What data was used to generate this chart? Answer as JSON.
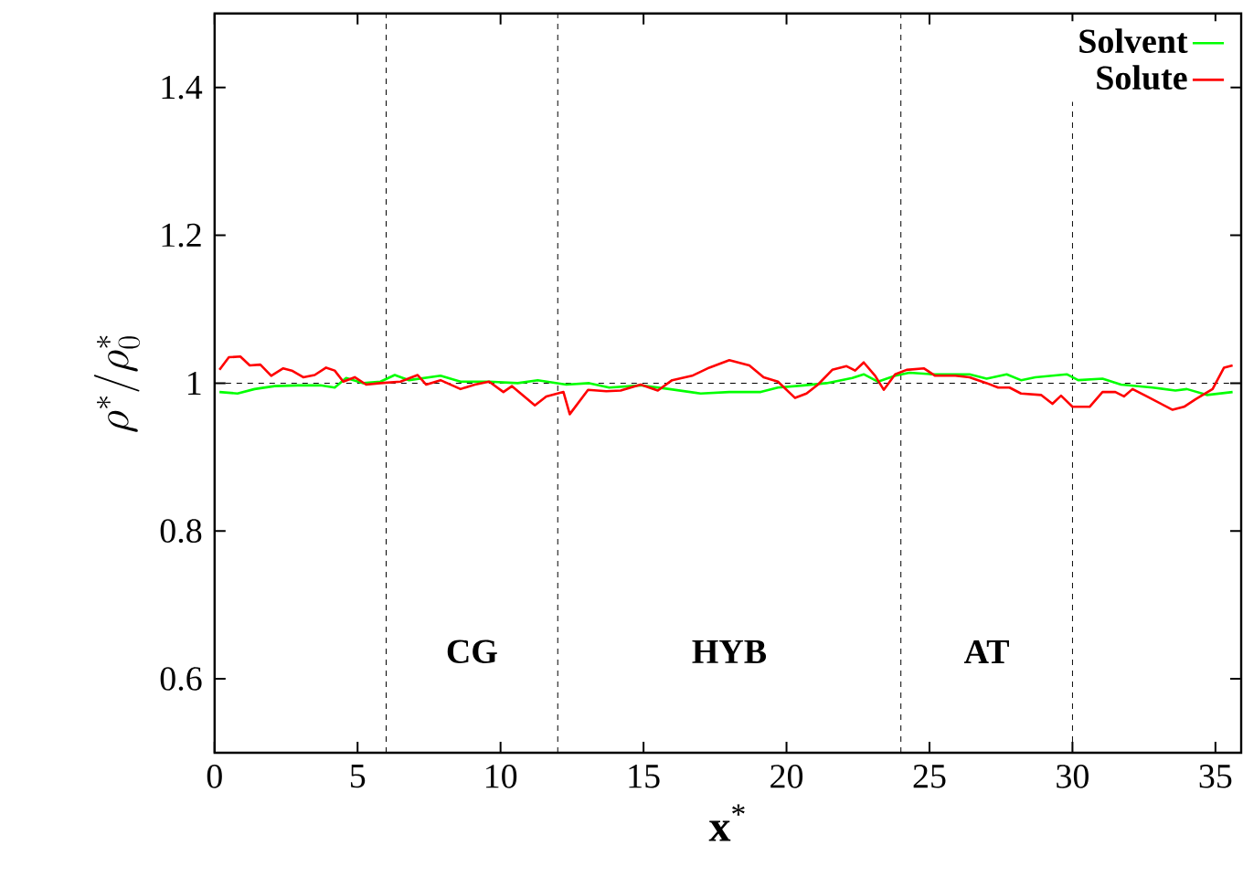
{
  "chart_data": {
    "type": "line",
    "xlabel": "**x**$^{*}$",
    "ylabel": "\\rho^*/\\rho^*_0",
    "xlim": [
      0,
      35.9
    ],
    "ylim": [
      0.5,
      1.5
    ],
    "xticks": [
      0,
      5,
      10,
      15,
      20,
      25,
      30,
      35
    ],
    "yticks": [
      0.6,
      0.8,
      1,
      1.2,
      1.4
    ],
    "legend": "top right",
    "grid": false,
    "line_style": "solid",
    "marker": "none",
    "series": [
      {
        "name": "Solvent",
        "color": "#00ff00",
        "x": [
          0.17,
          0.8,
          1.4,
          2.1,
          2.9,
          3.7,
          4.2,
          4.6,
          5.2,
          5.8,
          6.3,
          6.8,
          7.9,
          8.6,
          9.6,
          10.6,
          11.3,
          12.3,
          13.1,
          13.8,
          14.9,
          15.9,
          17.0,
          18.0,
          19.1,
          19.7,
          20.6,
          21.4,
          22.3,
          22.7,
          23.2,
          23.8,
          24.3,
          25.1,
          26.4,
          27.0,
          27.7,
          28.2,
          28.7,
          29.8,
          30.2,
          31.05,
          31.7,
          32.8,
          33.6,
          34.0,
          34.7,
          35.6
        ],
        "values": [
          0.988,
          0.986,
          0.992,
          0.996,
          0.997,
          0.997,
          0.994,
          1.007,
          1.0,
          1.002,
          1.011,
          1.004,
          1.01,
          1.002,
          1.002,
          1.0,
          1.004,
          0.998,
          1.0,
          0.994,
          0.997,
          0.992,
          0.986,
          0.988,
          0.988,
          0.994,
          0.997,
          1.0,
          1.007,
          1.012,
          1.002,
          1.01,
          1.014,
          1.012,
          1.012,
          1.006,
          1.012,
          1.004,
          1.008,
          1.012,
          1.004,
          1.006,
          0.998,
          0.994,
          0.99,
          0.992,
          0.984,
          0.988
        ]
      },
      {
        "name": "Solute",
        "color": "#ff0000",
        "x": [
          0.17,
          0.5,
          0.9,
          1.23,
          1.6,
          1.98,
          2.4,
          2.7,
          3.1,
          3.5,
          3.9,
          4.2,
          4.5,
          4.9,
          5.3,
          5.8,
          6.5,
          7.1,
          7.4,
          7.9,
          8.6,
          9.1,
          9.6,
          10.1,
          10.4,
          11.2,
          11.6,
          12.2,
          12.42,
          13.06,
          13.7,
          14.2,
          14.9,
          15.5,
          16.0,
          16.7,
          17.3,
          18.0,
          18.7,
          19.2,
          19.7,
          20.3,
          20.7,
          21.1,
          21.6,
          22.1,
          22.4,
          22.7,
          23.1,
          23.4,
          23.8,
          24.2,
          24.8,
          25.2,
          25.9,
          26.4,
          27.0,
          27.4,
          27.8,
          28.2,
          28.9,
          29.3,
          29.6,
          30.0,
          30.6,
          31.05,
          31.5,
          31.8,
          32.1,
          32.6,
          33.2,
          33.5,
          33.9,
          34.3,
          34.9,
          35.3,
          35.6
        ],
        "values": [
          1.018,
          1.035,
          1.036,
          1.024,
          1.025,
          1.01,
          1.02,
          1.017,
          1.008,
          1.011,
          1.021,
          1.017,
          1.002,
          1.008,
          0.998,
          1.0,
          1.002,
          1.011,
          0.998,
          1.004,
          0.992,
          0.998,
          1.002,
          0.988,
          0.996,
          0.97,
          0.982,
          0.988,
          0.958,
          0.991,
          0.989,
          0.99,
          0.998,
          0.99,
          1.004,
          1.01,
          1.021,
          1.031,
          1.024,
          1.008,
          1.002,
          0.98,
          0.986,
          0.998,
          1.018,
          1.023,
          1.017,
          1.028,
          1.01,
          0.991,
          1.012,
          1.018,
          1.02,
          1.01,
          1.01,
          1.008,
          1.0,
          0.994,
          0.994,
          0.986,
          0.984,
          0.972,
          0.983,
          0.968,
          0.968,
          0.988,
          0.988,
          0.982,
          0.992,
          0.982,
          0.97,
          0.964,
          0.968,
          0.978,
          0.992,
          1.021,
          1.024
        ]
      }
    ],
    "ref_lines": [
      {
        "axis": "y",
        "value": 1,
        "color": "#000000",
        "line_style": "dashed"
      },
      {
        "axis": "x",
        "value": 6,
        "color": "#000000",
        "line_style": "dashed"
      },
      {
        "axis": "x",
        "value": 12,
        "color": "#000000",
        "line_style": "dashed"
      },
      {
        "axis": "x",
        "value": 24,
        "color": "#000000",
        "line_style": "dashed"
      },
      {
        "axis": "x",
        "value": 30,
        "color": "#000000",
        "line_style": "dashed"
      }
    ],
    "annotations": [
      "**CG**",
      "**HYB**",
      "**AT**"
    ]
  }
}
